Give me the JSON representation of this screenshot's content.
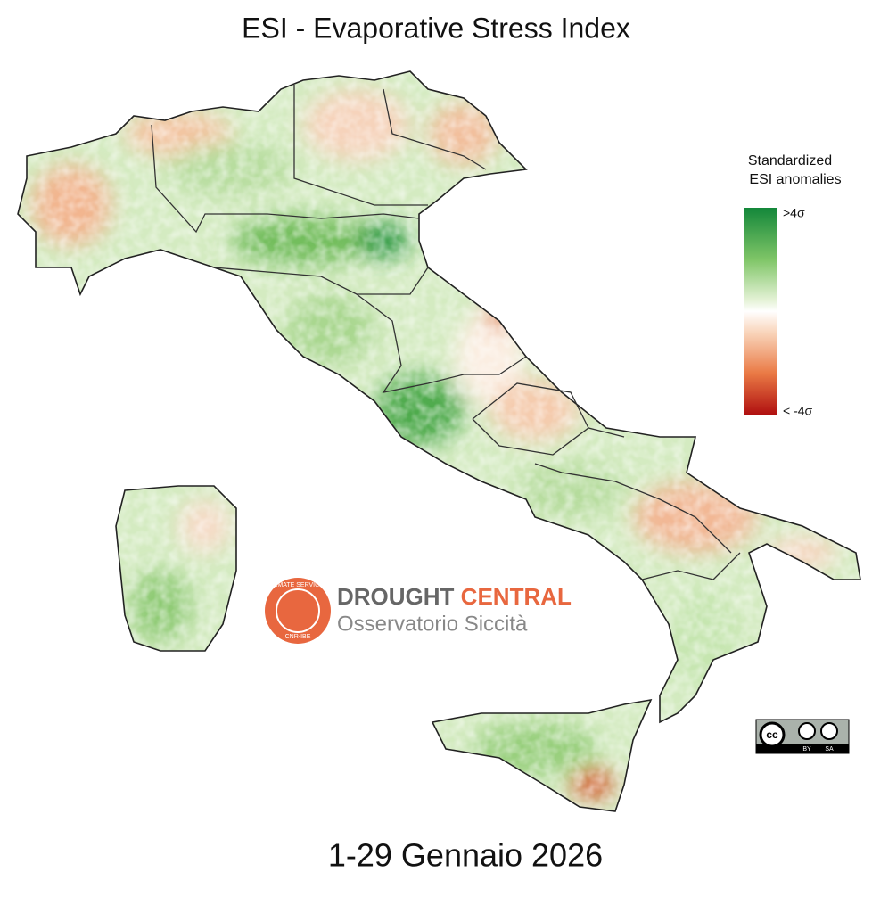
{
  "header": {
    "title": "ESI - Evaporative Stress Index"
  },
  "legend": {
    "title_lines": [
      "Standardized",
      "ESI anomalies"
    ],
    "max_label": ">4σ",
    "min_label": "< -4σ"
  },
  "logo": {
    "ring_top": "CLIMATE SERVICES",
    "ring_bottom": "CNR-IBE",
    "word1": "DROUGHT",
    "word2": "CENTRAL",
    "subtitle": "Osservatorio Siccità"
  },
  "license": {
    "cc": "cc",
    "by": "BY",
    "sa": "SA"
  },
  "footer": {
    "date": "1-29 Gennaio 2026"
  }
}
